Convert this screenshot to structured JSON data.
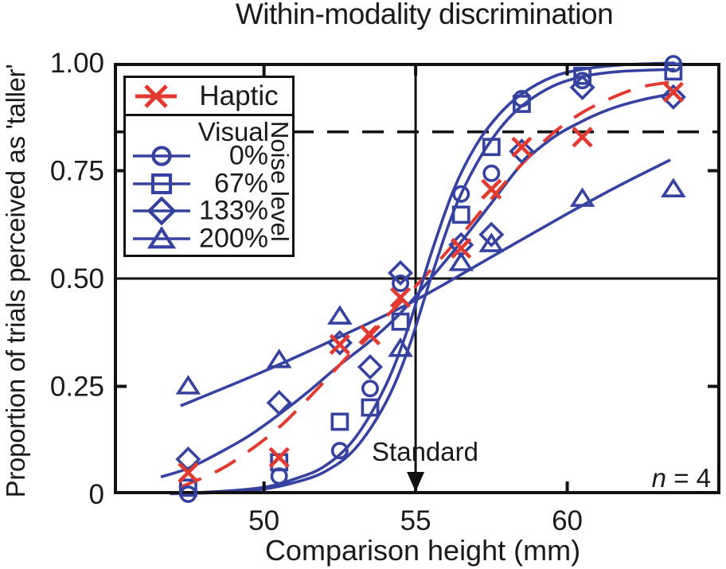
{
  "title": "Within-modality discrimination",
  "axes": {
    "x_label": "Comparison height (mm)",
    "y_label": "Proportion of trials perceived as 'taller'",
    "x_ticks": [
      {
        "value": 50,
        "label": "50",
        "tick_mark": true
      },
      {
        "value": 55,
        "label": "55",
        "tick_mark": true
      },
      {
        "value": 60,
        "label": "60",
        "tick_mark": true
      }
    ],
    "y_ticks": [
      {
        "value": 0,
        "label": "0",
        "tick_mark": false
      },
      {
        "value": 0.25,
        "label": "0.25",
        "tick_mark": true
      },
      {
        "value": 0.5,
        "label": "0.50",
        "tick_mark": false
      },
      {
        "value": 0.75,
        "label": "0.75",
        "tick_mark": true
      },
      {
        "value": 1,
        "label": "1.00",
        "tick_mark": false
      }
    ],
    "x_range": [
      45.1,
      65.0
    ],
    "y_range": [
      0,
      1
    ]
  },
  "legend": {
    "haptic_label": "Haptic",
    "visual_label": "Visual",
    "noise_axis_label": "Noise level",
    "noise_levels": [
      {
        "label": "0%",
        "marker": "circle"
      },
      {
        "label": "67%",
        "marker": "square"
      },
      {
        "label": "133%",
        "marker": "diamond"
      },
      {
        "label": "200%",
        "marker": "triangle"
      }
    ]
  },
  "annotations": {
    "standard": "Standard",
    "n_symbol": "n",
    "n_rest": " = 4"
  },
  "colors": {
    "visual_blue": "#36429f",
    "haptic_red": "#e23a30",
    "ink": "#111111"
  },
  "chart_data": {
    "type": "scatter",
    "title": "Within-modality discrimination",
    "xlabel": "Comparison height (mm)",
    "ylabel": "Proportion of trials perceived as 'taller'",
    "xlim": [
      45.1,
      65.0
    ],
    "ylim": [
      0,
      1
    ],
    "x_ticks": [
      50,
      55,
      60
    ],
    "y_ticks": [
      0,
      0.25,
      0.5,
      0.75,
      1
    ],
    "legend_position": "upper-left",
    "grid": false,
    "reference_lines": {
      "dashed_horizontal_y": 0.84,
      "solid_horizontal_y": 0.5,
      "vertical_standard_x": 55,
      "standard_label": "Standard"
    },
    "sample_size_note": "n = 4",
    "series": [
      {
        "name": "Haptic",
        "marker": "x",
        "color_key": "haptic_red",
        "points": [
          [
            47.5,
            0.05
          ],
          [
            50.5,
            0.085
          ],
          [
            52.5,
            0.347
          ],
          [
            53.5,
            0.369
          ],
          [
            54.5,
            0.456
          ],
          [
            56.5,
            0.57
          ],
          [
            57.5,
            0.707
          ],
          [
            58.5,
            0.805
          ],
          [
            60.5,
            0.828
          ],
          [
            63.5,
            0.932
          ]
        ]
      },
      {
        "name": "Visual 0% noise",
        "marker": "circle",
        "color_key": "visual_blue",
        "points": [
          [
            47.5,
            0.0
          ],
          [
            50.5,
            0.042
          ],
          [
            52.5,
            0.101
          ],
          [
            53.5,
            0.245
          ],
          [
            54.5,
            0.489
          ],
          [
            56.5,
            0.696
          ],
          [
            57.5,
            0.744
          ],
          [
            58.5,
            0.917
          ],
          [
            60.5,
            0.959
          ],
          [
            63.5,
            0.998
          ]
        ]
      },
      {
        "name": "Visual 67% noise",
        "marker": "square",
        "color_key": "visual_blue",
        "points": [
          [
            47.5,
            0.015
          ],
          [
            50.5,
            0.074
          ],
          [
            52.5,
            0.168
          ],
          [
            53.5,
            0.201
          ],
          [
            54.5,
            0.4
          ],
          [
            56.5,
            0.648
          ],
          [
            57.5,
            0.805
          ],
          [
            58.5,
            0.905
          ],
          [
            60.5,
            0.97
          ],
          [
            63.5,
            0.98
          ]
        ]
      },
      {
        "name": "Visual 133% noise",
        "marker": "diamond",
        "color_key": "visual_blue",
        "points": [
          [
            47.5,
            0.081
          ],
          [
            50.5,
            0.212
          ],
          [
            52.5,
            0.351
          ],
          [
            53.5,
            0.295
          ],
          [
            54.5,
            0.513
          ],
          [
            56.5,
            0.578
          ],
          [
            57.5,
            0.602
          ],
          [
            58.5,
            0.795
          ],
          [
            60.5,
            0.943
          ],
          [
            63.5,
            0.921
          ]
        ]
      },
      {
        "name": "Visual 200% noise",
        "marker": "triangle",
        "color_key": "visual_blue",
        "points": [
          [
            47.5,
            0.251
          ],
          [
            50.5,
            0.312
          ],
          [
            52.5,
            0.413
          ],
          [
            54.5,
            0.338
          ],
          [
            56.5,
            0.537
          ],
          [
            57.5,
            0.581
          ],
          [
            60.5,
            0.686
          ],
          [
            63.5,
            0.708
          ]
        ]
      }
    ],
    "fitted_curves": [
      {
        "name": "Visual 200% fit",
        "color_key": "visual_blue",
        "dash": "none",
        "points": [
          [
            47.25,
            0.205
          ],
          [
            50,
            0.285
          ],
          [
            52.5,
            0.365
          ],
          [
            55,
            0.45
          ],
          [
            57.5,
            0.55
          ],
          [
            60,
            0.65
          ],
          [
            61.7,
            0.715
          ],
          [
            63.4,
            0.775
          ]
        ]
      },
      {
        "name": "Visual 133% fit",
        "color_key": "visual_blue",
        "dash": "none",
        "points": [
          [
            46.6,
            0.04
          ],
          [
            47.5,
            0.06
          ],
          [
            48.5,
            0.095
          ],
          [
            49.5,
            0.135
          ],
          [
            50.5,
            0.185
          ],
          [
            51.5,
            0.24
          ],
          [
            52.5,
            0.3
          ],
          [
            53.5,
            0.355
          ],
          [
            54.5,
            0.42
          ],
          [
            55.5,
            0.5
          ],
          [
            56.5,
            0.585
          ],
          [
            57.5,
            0.675
          ],
          [
            58.5,
            0.765
          ],
          [
            59.5,
            0.825
          ],
          [
            60.5,
            0.865
          ],
          [
            61.5,
            0.895
          ],
          [
            62.5,
            0.915
          ],
          [
            63.45,
            0.928
          ]
        ]
      },
      {
        "name": "Haptic fit",
        "color_key": "haptic_red",
        "dash": "dashed",
        "points": [
          [
            47.2,
            0.015
          ],
          [
            48.5,
            0.055
          ],
          [
            49.5,
            0.1
          ],
          [
            50.5,
            0.155
          ],
          [
            51.5,
            0.225
          ],
          [
            52.5,
            0.3
          ],
          [
            53.5,
            0.375
          ],
          [
            54.5,
            0.445
          ],
          [
            55.5,
            0.52
          ],
          [
            56.5,
            0.6
          ],
          [
            57.5,
            0.685
          ],
          [
            58.5,
            0.765
          ],
          [
            59.5,
            0.835
          ],
          [
            60.5,
            0.885
          ],
          [
            61.5,
            0.92
          ],
          [
            62.5,
            0.945
          ],
          [
            63.6,
            0.957
          ]
        ]
      },
      {
        "name": "Visual 67% fit",
        "color_key": "visual_blue",
        "dash": "none",
        "points": [
          [
            46.9,
            0.001
          ],
          [
            48.5,
            0.004
          ],
          [
            50,
            0.012
          ],
          [
            51,
            0.027
          ],
          [
            52,
            0.052
          ],
          [
            53,
            0.105
          ],
          [
            54,
            0.21
          ],
          [
            54.75,
            0.335
          ],
          [
            55.5,
            0.5
          ],
          [
            56.25,
            0.655
          ],
          [
            57,
            0.765
          ],
          [
            57.75,
            0.845
          ],
          [
            58.5,
            0.9
          ],
          [
            59.5,
            0.945
          ],
          [
            60.5,
            0.968
          ],
          [
            61.75,
            0.98
          ],
          [
            63.55,
            0.985
          ]
        ]
      },
      {
        "name": "Visual 0% fit",
        "color_key": "visual_blue",
        "dash": "none",
        "points": [
          [
            46.9,
            0.002
          ],
          [
            48.5,
            0.006
          ],
          [
            50,
            0.016
          ],
          [
            51,
            0.035
          ],
          [
            52,
            0.065
          ],
          [
            53,
            0.13
          ],
          [
            54,
            0.25
          ],
          [
            54.75,
            0.385
          ],
          [
            55.5,
            0.555
          ],
          [
            56.25,
            0.705
          ],
          [
            57,
            0.81
          ],
          [
            57.75,
            0.88
          ],
          [
            58.5,
            0.928
          ],
          [
            59.5,
            0.967
          ],
          [
            60.5,
            0.985
          ],
          [
            61.75,
            0.995
          ],
          [
            63.55,
            1.0
          ]
        ]
      }
    ]
  }
}
